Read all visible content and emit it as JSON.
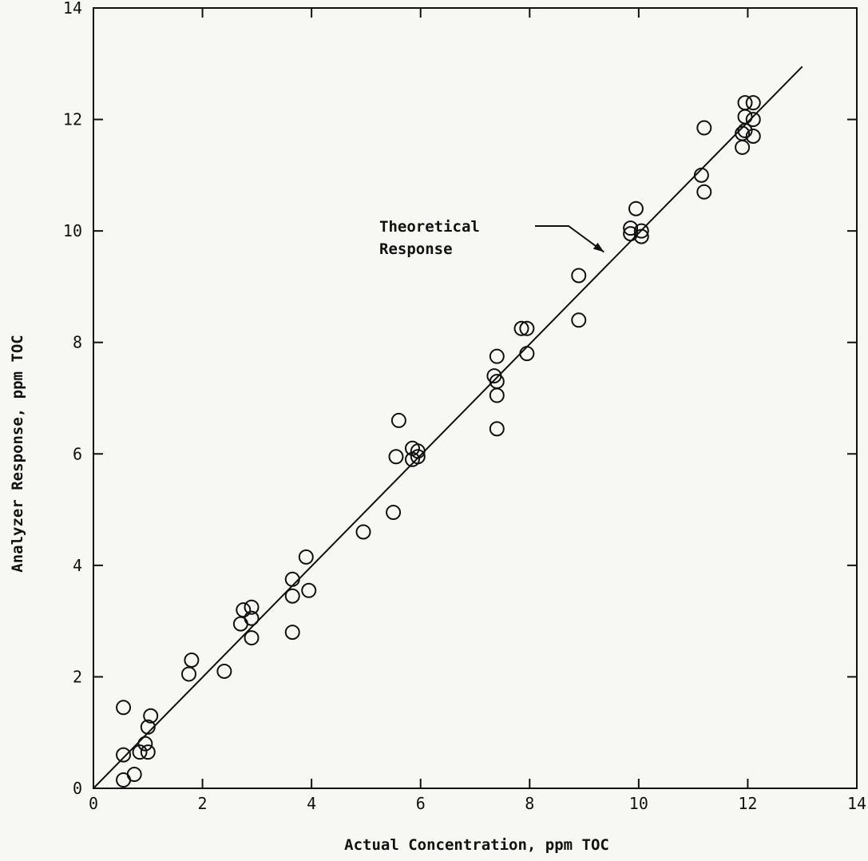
{
  "chart_data": {
    "type": "scatter",
    "title": "",
    "xlabel": "Actual Concentration, ppm TOC",
    "ylabel": "Analyzer Response, ppm TOC",
    "xlim": [
      0,
      14
    ],
    "ylim": [
      0,
      14
    ],
    "x_ticks": [
      0,
      2,
      4,
      6,
      8,
      10,
      12,
      14
    ],
    "y_ticks": [
      0,
      2,
      4,
      6,
      8,
      10,
      12,
      14
    ],
    "x_tick_labels": [
      "0",
      "2",
      "4",
      "6",
      "8",
      "10",
      "12",
      "14"
    ],
    "y_tick_labels": [
      "0",
      "2",
      "4",
      "6",
      "8",
      "10",
      "12",
      "14"
    ],
    "grid": false,
    "marker": "open-circle",
    "series": [
      {
        "points": [
          [
            0.55,
            1.45
          ],
          [
            0.55,
            0.6
          ],
          [
            0.55,
            0.15
          ],
          [
            0.75,
            0.25
          ],
          [
            0.85,
            0.65
          ],
          [
            0.95,
            0.8
          ],
          [
            1.0,
            0.65
          ],
          [
            1.0,
            1.1
          ],
          [
            1.05,
            1.3
          ],
          [
            1.75,
            2.05
          ],
          [
            1.8,
            2.3
          ],
          [
            2.4,
            2.1
          ],
          [
            2.7,
            2.95
          ],
          [
            2.75,
            3.2
          ],
          [
            2.9,
            3.25
          ],
          [
            2.9,
            3.05
          ],
          [
            2.9,
            2.7
          ],
          [
            3.65,
            3.75
          ],
          [
            3.65,
            3.45
          ],
          [
            3.65,
            2.8
          ],
          [
            3.9,
            4.15
          ],
          [
            3.95,
            3.55
          ],
          [
            4.95,
            4.6
          ],
          [
            5.5,
            4.95
          ],
          [
            5.55,
            5.95
          ],
          [
            5.6,
            6.6
          ],
          [
            5.85,
            6.1
          ],
          [
            5.85,
            5.9
          ],
          [
            5.95,
            6.05
          ],
          [
            5.95,
            5.95
          ],
          [
            7.35,
            7.4
          ],
          [
            7.4,
            7.75
          ],
          [
            7.4,
            7.3
          ],
          [
            7.4,
            7.05
          ],
          [
            7.4,
            6.45
          ],
          [
            7.85,
            8.25
          ],
          [
            7.95,
            8.25
          ],
          [
            7.95,
            7.8
          ],
          [
            8.9,
            9.2
          ],
          [
            8.9,
            8.4
          ],
          [
            9.85,
            9.95
          ],
          [
            9.85,
            10.05
          ],
          [
            9.95,
            10.4
          ],
          [
            10.05,
            9.9
          ],
          [
            10.05,
            10.0
          ],
          [
            11.2,
            11.85
          ],
          [
            11.15,
            11.0
          ],
          [
            11.2,
            10.7
          ],
          [
            11.9,
            11.5
          ],
          [
            11.9,
            11.75
          ],
          [
            11.95,
            12.3
          ],
          [
            11.95,
            12.05
          ],
          [
            11.95,
            11.8
          ],
          [
            12.1,
            12.3
          ],
          [
            12.1,
            12.0
          ],
          [
            12.1,
            11.7
          ]
        ]
      },
      {
        "type": "line",
        "points": [
          [
            0,
            0
          ],
          [
            13.0,
            12.95
          ]
        ]
      }
    ],
    "annotations": [
      {
        "text_lines": [
          "Theoretical",
          "Response"
        ],
        "points_to": [
          9.45,
          9.45
        ]
      }
    ]
  }
}
